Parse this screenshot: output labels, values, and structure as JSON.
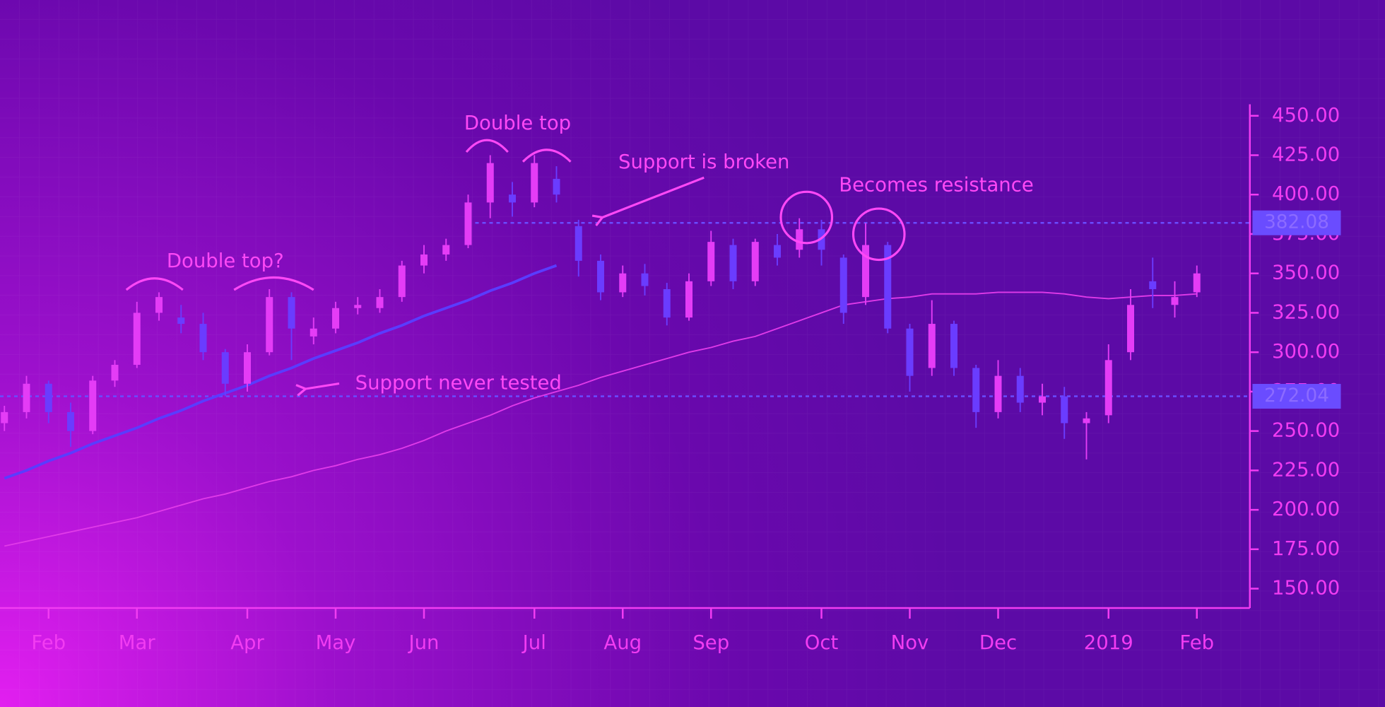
{
  "chart_data": {
    "type": "candlestick",
    "categories": [
      null,
      null,
      "Feb",
      null,
      null,
      null,
      "Mar",
      null,
      null,
      null,
      null,
      "Apr",
      null,
      null,
      null,
      "May",
      null,
      null,
      null,
      "Jun",
      null,
      null,
      null,
      null,
      "Jul",
      null,
      null,
      null,
      "Aug",
      null,
      null,
      null,
      "Sep",
      null,
      null,
      null,
      null,
      "Oct",
      null,
      null,
      null,
      "Nov",
      null,
      null,
      null,
      "Dec",
      null,
      null,
      null,
      null,
      "2019",
      null,
      null,
      null,
      "Feb"
    ],
    "open": [
      255,
      262,
      280,
      262,
      250,
      282,
      292,
      325,
      322,
      318,
      300,
      280,
      300,
      335,
      310,
      315,
      328,
      328,
      335,
      355,
      362,
      368,
      395,
      400,
      395,
      410,
      380,
      358,
      338,
      350,
      340,
      322,
      345,
      368,
      345,
      368,
      365,
      378,
      360,
      335,
      368,
      315,
      290,
      318,
      290,
      262,
      285,
      268,
      272,
      255,
      260,
      300,
      345,
      330,
      338
    ],
    "high": [
      266,
      285,
      282,
      268,
      285,
      295,
      332,
      338,
      330,
      325,
      302,
      305,
      340,
      338,
      322,
      332,
      335,
      340,
      358,
      368,
      372,
      400,
      425,
      408,
      425,
      418,
      384,
      362,
      355,
      356,
      344,
      350,
      377,
      372,
      372,
      375,
      385,
      384,
      362,
      382,
      370,
      318,
      333,
      320,
      292,
      295,
      290,
      280,
      278,
      262,
      305,
      340,
      360,
      345,
      355
    ],
    "low": [
      250,
      258,
      255,
      240,
      248,
      278,
      290,
      320,
      312,
      295,
      272,
      275,
      298,
      295,
      305,
      312,
      324,
      325,
      332,
      350,
      358,
      366,
      385,
      386,
      392,
      395,
      348,
      333,
      335,
      336,
      317,
      320,
      342,
      340,
      342,
      355,
      360,
      355,
      318,
      330,
      312,
      275,
      285,
      285,
      252,
      258,
      262,
      260,
      245,
      232,
      255,
      295,
      328,
      322,
      335
    ],
    "close": [
      262,
      280,
      262,
      250,
      282,
      292,
      325,
      335,
      318,
      300,
      280,
      300,
      335,
      315,
      315,
      328,
      330,
      335,
      355,
      362,
      368,
      395,
      420,
      395,
      420,
      400,
      358,
      338,
      350,
      342,
      322,
      345,
      370,
      345,
      370,
      360,
      378,
      365,
      325,
      368,
      315,
      285,
      318,
      290,
      262,
      285,
      268,
      272,
      255,
      258,
      295,
      330,
      340,
      335,
      350
    ],
    "up_color": "#e43cf6",
    "down_color": "#6a3cff",
    "moving_average": {
      "color": "#e03ae8",
      "values": [
        177,
        180,
        183,
        186,
        189,
        192,
        195,
        199,
        203,
        207,
        210,
        214,
        218,
        221,
        225,
        228,
        232,
        235,
        239,
        244,
        250,
        255,
        260,
        266,
        271,
        275,
        279,
        284,
        288,
        292,
        296,
        300,
        303,
        307,
        310,
        315,
        320,
        325,
        330,
        332,
        334,
        335,
        337,
        337,
        337,
        338,
        338,
        338,
        337,
        335,
        334,
        335,
        336,
        336,
        337
      ]
    },
    "trend_line": {
      "color": "#5a3cff",
      "values": [
        220,
        225,
        231,
        236,
        242,
        247,
        252,
        258,
        263,
        269,
        274,
        279,
        285,
        290,
        296,
        301,
        306,
        312,
        317,
        323,
        328,
        333,
        339,
        344,
        350,
        355,
        null,
        null,
        null,
        null,
        null,
        null,
        null,
        null,
        null,
        null,
        null,
        null,
        null,
        null,
        null,
        null,
        null,
        null,
        null,
        null,
        null,
        null,
        null,
        null,
        null,
        null,
        null,
        null,
        null
      ]
    },
    "levels": [
      {
        "value": 382.08
      },
      {
        "value": 272.04
      }
    ],
    "level_color": "#6a4cff",
    "ylim": [
      137.7,
      457.3
    ],
    "yticks": [
      {
        "value": 150,
        "label": "150.00"
      },
      {
        "value": 175,
        "label": "175.00"
      },
      {
        "value": 200,
        "label": "200.00"
      },
      {
        "value": 225,
        "label": "225.00"
      },
      {
        "value": 250,
        "label": "250.00"
      },
      {
        "value": 275,
        "label": "275.00"
      },
      {
        "value": 300,
        "label": "300.00"
      },
      {
        "value": 325,
        "label": "325.00"
      },
      {
        "value": 350,
        "label": "350.00"
      },
      {
        "value": 375,
        "label": "375.00"
      },
      {
        "value": 400,
        "label": "400.00"
      },
      {
        "value": 425,
        "label": "425.00"
      },
      {
        "value": 450,
        "label": "450.00"
      }
    ],
    "annotations": [
      "Double top?",
      "Double top",
      "Support is broken",
      "Becomes resistance",
      "Support never tested"
    ]
  }
}
